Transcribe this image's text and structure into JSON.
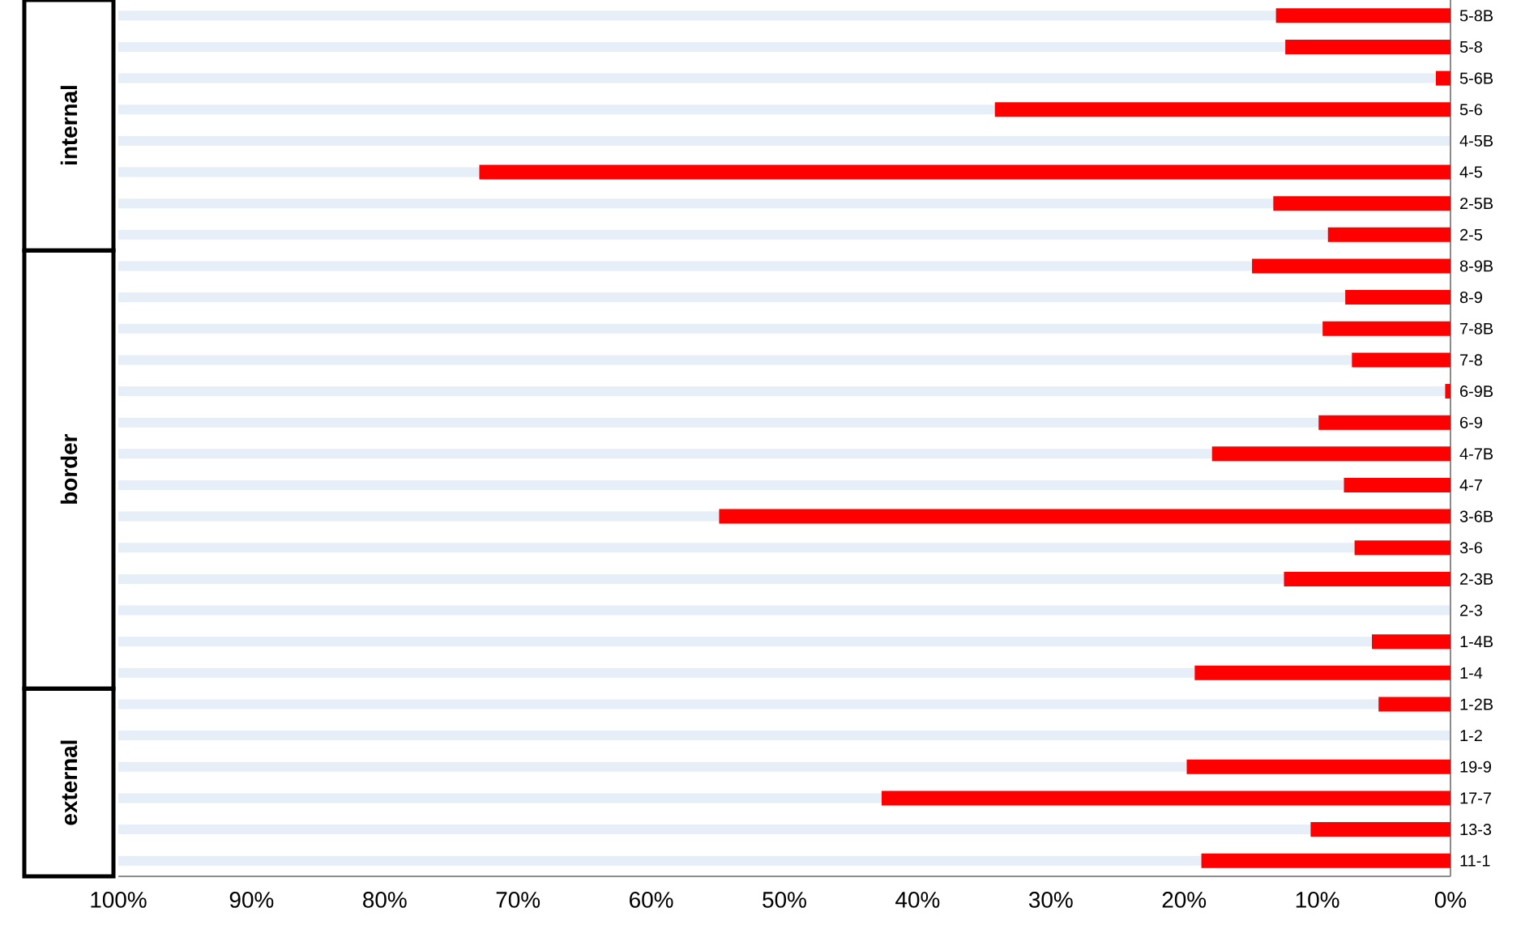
{
  "chart_data": {
    "type": "bar",
    "orientation": "horizontal",
    "color": "#ff0000",
    "categories": [
      "5-8B",
      "5-8",
      "5-6B",
      "5-6",
      "4-5B",
      "4-5",
      "2-5B",
      "2-5",
      "8-9B",
      "8-9",
      "7-8B",
      "7-8",
      "6-9B",
      "6-9",
      "4-7B",
      "4-7",
      "3-6B",
      "3-6",
      "2-3B",
      "2-3",
      "1-4B",
      "1-4",
      "1-2B",
      "1-2",
      "19-9",
      "17-7",
      "13-3",
      "11-1"
    ],
    "values": [
      13.1,
      12.4,
      1.1,
      34.2,
      0,
      72.9,
      13.3,
      9.2,
      14.9,
      7.9,
      9.6,
      7.4,
      0.4,
      9.9,
      17.9,
      8.0,
      54.9,
      7.2,
      12.5,
      0,
      5.9,
      19.2,
      5.4,
      0,
      19.8,
      42.7,
      10.5,
      18.7
    ],
    "xlim": [
      100,
      0
    ],
    "xticks": [
      {
        "value": 100,
        "label": "100%"
      },
      {
        "value": 90,
        "label": "90%"
      },
      {
        "value": 80,
        "label": "80%"
      },
      {
        "value": 70,
        "label": "70%"
      },
      {
        "value": 60,
        "label": "60%"
      },
      {
        "value": 50,
        "label": "50%"
      },
      {
        "value": 40,
        "label": "40%"
      },
      {
        "value": 30,
        "label": "30%"
      },
      {
        "value": 20,
        "label": "20%"
      },
      {
        "value": 10,
        "label": "10%"
      },
      {
        "value": 0,
        "label": "0%"
      }
    ],
    "grid": "y",
    "annotations": [
      "internal",
      "border",
      "external"
    ]
  }
}
